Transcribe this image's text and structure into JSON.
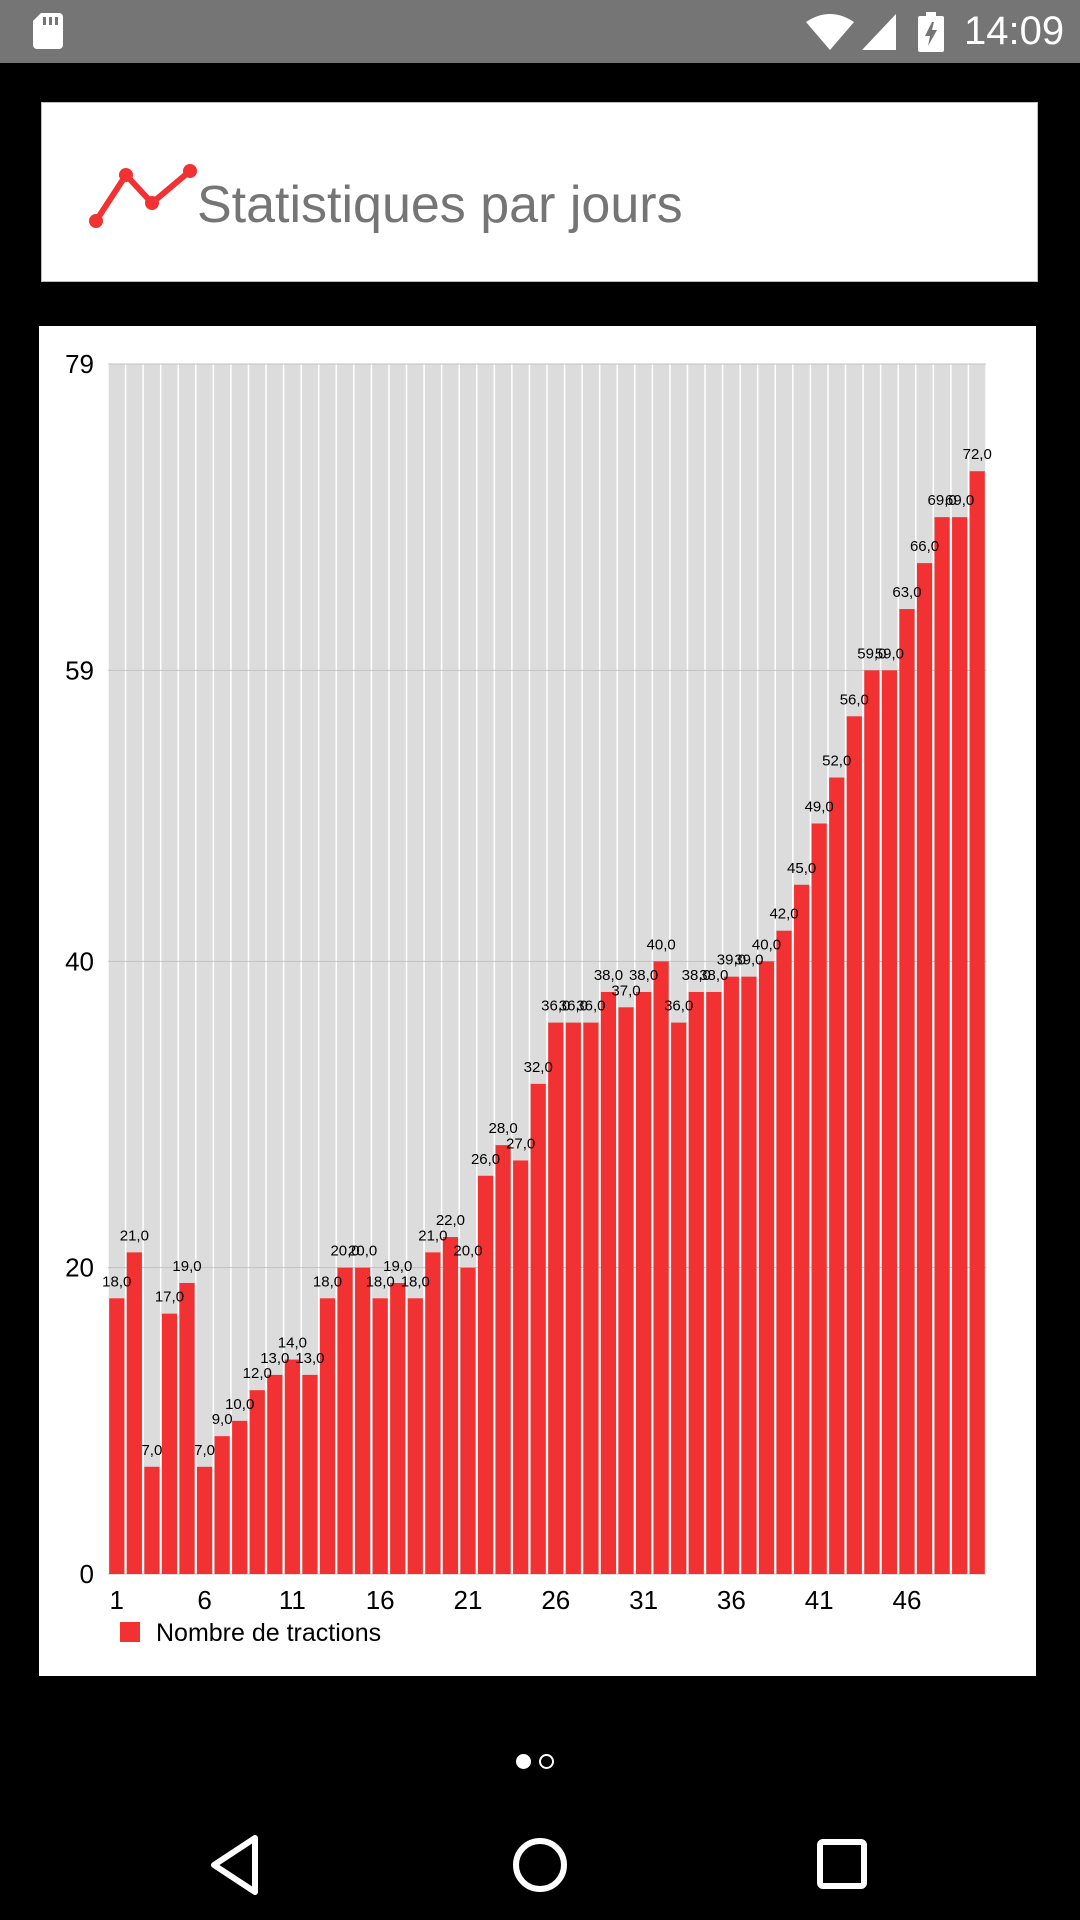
{
  "status_bar": {
    "time": "14:09"
  },
  "header": {
    "title": "Statistiques par jours",
    "icon": "trend-line-icon"
  },
  "colors": {
    "bar": "#f23232",
    "plot_bg": "#dcdcdc",
    "title_gray": "#757575",
    "status_bg": "#757575"
  },
  "chart_data": {
    "type": "bar",
    "legend": {
      "label": "Nombre de tractions",
      "position": "bottom-left"
    },
    "ylim": [
      0,
      79
    ],
    "yticks": [
      0,
      20,
      40,
      59,
      79
    ],
    "xticks": [
      1,
      6,
      11,
      16,
      21,
      26,
      31,
      36,
      41,
      46
    ],
    "categories": [
      1,
      2,
      3,
      4,
      5,
      6,
      7,
      8,
      9,
      10,
      11,
      12,
      13,
      14,
      15,
      16,
      17,
      18,
      19,
      20,
      21,
      22,
      23,
      24,
      25,
      26,
      27,
      28,
      29,
      30,
      31,
      32,
      33,
      34,
      35,
      36,
      37,
      38,
      39,
      40,
      41,
      42,
      43,
      44,
      45,
      46,
      47,
      48,
      49,
      50
    ],
    "values": [
      18,
      21,
      7,
      17,
      19,
      7,
      9,
      10,
      12,
      13,
      14,
      13,
      18,
      20,
      20,
      18,
      19,
      18,
      21,
      22,
      20,
      26,
      28,
      27,
      32,
      36,
      36,
      36,
      38,
      37,
      38,
      40,
      36,
      38,
      38,
      39,
      39,
      40,
      42,
      45,
      49,
      52,
      56,
      59,
      59,
      63,
      66,
      69,
      69,
      72
    ],
    "data_labels": [
      "18,0",
      "21,0",
      "7,0",
      "17,0",
      "19,0",
      "7,0",
      "9,0",
      "10,0",
      "12,0",
      "13,0",
      "14,0",
      "13,0",
      "18,0",
      "20,0",
      "20,0",
      "18,0",
      "19,0",
      "18,0",
      "21,0",
      "22,0",
      "20,0",
      "26,0",
      "28,0",
      "27,0",
      "32,0",
      "36,0",
      "36,0",
      "36,0",
      "38,0",
      "37,0",
      "38,0",
      "40,0",
      "36,0",
      "38,0",
      "38,0",
      "39,0",
      "39,0",
      "40,0",
      "42,0",
      "45,0",
      "49,0",
      "52,0",
      "56,0",
      "59,0",
      "59,0",
      "63,0",
      "66,0",
      "69,0",
      "69,0",
      "72,0"
    ],
    "grid": true
  }
}
